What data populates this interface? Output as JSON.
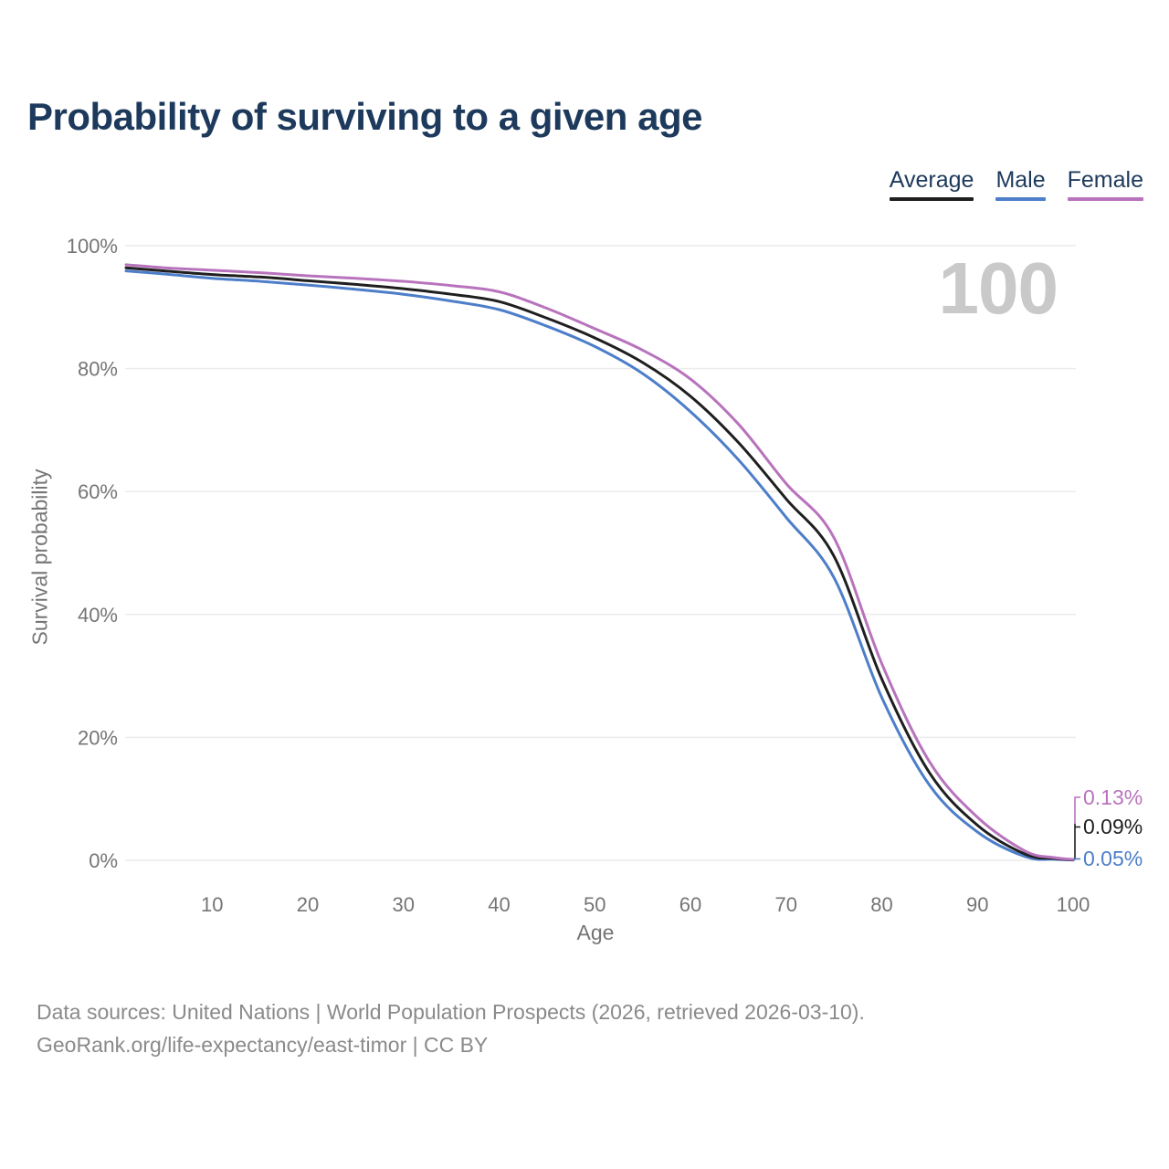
{
  "page": {
    "background": "#ffffff"
  },
  "header": {
    "title": "Probability of surviving to a given age"
  },
  "chart_data": {
    "type": "line",
    "title": "Probability of surviving to a given age",
    "xlabel": "Age",
    "ylabel": "Survival probability",
    "xlim": [
      1,
      100
    ],
    "ylim": [
      0,
      100
    ],
    "x_ticks": [
      10,
      20,
      30,
      40,
      50,
      60,
      70,
      80,
      90,
      100
    ],
    "y_ticks": [
      0,
      20,
      40,
      60,
      80,
      100
    ],
    "y_tick_suffix": "%",
    "grid": "horizontal",
    "grid_color": "#ececec",
    "tick_color": "#757575",
    "hover_label": "100",
    "hover_label_color": "#c9c9c9",
    "x": [
      1,
      5,
      10,
      15,
      20,
      25,
      30,
      35,
      40,
      45,
      50,
      55,
      60,
      65,
      70,
      75,
      80,
      85,
      90,
      95,
      98,
      100
    ],
    "series": [
      {
        "name": "Average",
        "color": "#1f1f1f",
        "end_label": "0.09%",
        "end_value": 0.09,
        "values": [
          96.4,
          95.9,
          95.3,
          94.9,
          94.3,
          93.7,
          93.0,
          92.1,
          90.9,
          88.2,
          85.0,
          81.0,
          75.5,
          68.0,
          58.8,
          49.5,
          29.5,
          14.2,
          5.7,
          1.0,
          0.3,
          0.09
        ]
      },
      {
        "name": "Male",
        "color": "#4d7ec9",
        "end_label": "0.05%",
        "end_value": 0.05,
        "values": [
          95.9,
          95.4,
          94.7,
          94.2,
          93.6,
          92.9,
          92.1,
          91.0,
          89.6,
          86.9,
          83.6,
          79.2,
          73.0,
          65.2,
          55.8,
          46.0,
          26.5,
          12.2,
          4.6,
          0.6,
          0.18,
          0.05
        ]
      },
      {
        "name": "Female",
        "color": "#b873bd",
        "end_label": "0.13%",
        "end_value": 0.13,
        "values": [
          96.9,
          96.4,
          96.0,
          95.6,
          95.1,
          94.7,
          94.2,
          93.5,
          92.5,
          89.8,
          86.5,
          83.0,
          78.3,
          71.0,
          61.3,
          52.5,
          32.0,
          16.0,
          7.0,
          1.5,
          0.45,
          0.13
        ]
      }
    ]
  },
  "footer": {
    "line1": "Data sources: United Nations | World Population Prospects (2026, retrieved 2026-03-10).",
    "line2": "GeoRank.org/life-expectancy/east-timor | CC BY"
  }
}
